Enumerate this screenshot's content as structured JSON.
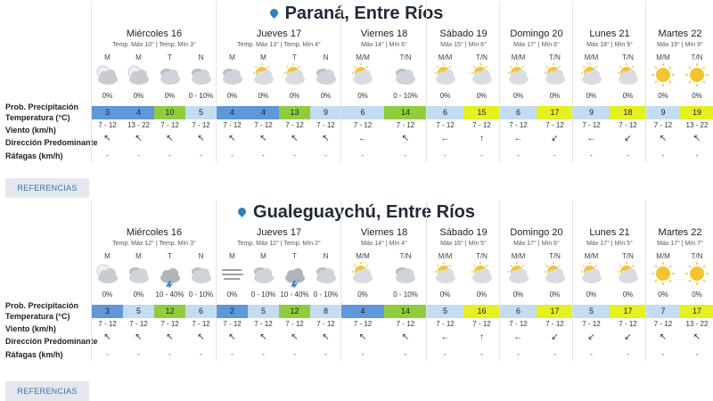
{
  "row_labels": [
    "Prob. Precipitación",
    "Temperatura (°C)",
    "Viento (km/h)",
    "Dirección Predominante",
    "Ráfagas (km/h)"
  ],
  "colors": {
    "cold": "#5f97d8",
    "cool": "#c4dcf2",
    "warm": "#8fcd3d",
    "hot": "#e4f01f"
  },
  "locations": [
    {
      "title": "Paraná, Entre Ríos",
      "button": "REFERENCIAS",
      "days": [
        {
          "name": "Miércoles 16",
          "temps": "Temp. Máx 10° | Temp. Mín 3°",
          "periods": [
            {
              "label": "M",
              "icon": "cloud-sun-icon",
              "precip": "0%",
              "temp": "3",
              "tc": "cold",
              "wind": "7 - 12",
              "dir": "↖",
              "gust": "-"
            },
            {
              "label": "M",
              "icon": "cloud-sun-icon",
              "precip": "0%",
              "temp": "4",
              "tc": "cold",
              "wind": "13 - 22",
              "dir": "↖",
              "gust": "-"
            },
            {
              "label": "T",
              "icon": "cloudy-icon",
              "precip": "0%",
              "temp": "10",
              "tc": "warm",
              "wind": "7 - 12",
              "dir": "↖",
              "gust": "-"
            },
            {
              "label": "N",
              "icon": "cloudy-icon",
              "precip": "0 - 10%",
              "temp": "5",
              "tc": "cool",
              "wind": "7 - 12",
              "dir": "↖",
              "gust": "-"
            }
          ]
        },
        {
          "name": "Jueves 17",
          "temps": "Temp. Máx 13° | Temp. Mín 4°",
          "periods": [
            {
              "label": "M",
              "icon": "cloudy-icon",
              "precip": "0%",
              "temp": "4",
              "tc": "cold",
              "wind": "7 - 12",
              "dir": "↖",
              "gust": "-"
            },
            {
              "label": "M",
              "icon": "partly-sunny-icon",
              "precip": "0%",
              "temp": "4",
              "tc": "cold",
              "wind": "7 - 12",
              "dir": "↖",
              "gust": "-"
            },
            {
              "label": "T",
              "icon": "partly-sunny-icon",
              "precip": "0%",
              "temp": "13",
              "tc": "warm",
              "wind": "7 - 12",
              "dir": "↖",
              "gust": "-"
            },
            {
              "label": "N",
              "icon": "cloudy-icon",
              "precip": "0%",
              "temp": "9",
              "tc": "cool",
              "wind": "7 - 12",
              "dir": "↖",
              "gust": "-"
            }
          ]
        },
        {
          "name": "Viernes 18",
          "temps": "Máx 14° | Mín 6°",
          "periods": [
            {
              "label": "M/M",
              "icon": "partly-sunny-icon",
              "precip": "0%",
              "temp": "6",
              "tc": "cool",
              "wind": "7 - 12",
              "dir": "←",
              "gust": "-"
            },
            {
              "label": "T/N",
              "icon": "cloudy-icon",
              "precip": "0 - 10%",
              "temp": "14",
              "tc": "warm",
              "wind": "7 - 12",
              "dir": "↖",
              "gust": "-"
            }
          ]
        },
        {
          "name": "Sábado 19",
          "temps": "Máx 15° | Mín 6°",
          "periods": [
            {
              "label": "M/M",
              "icon": "partly-sunny-icon",
              "precip": "0%",
              "temp": "6",
              "tc": "cool",
              "wind": "7 - 12",
              "dir": "←",
              "gust": "-"
            },
            {
              "label": "T/N",
              "icon": "partly-sunny-icon",
              "precip": "0%",
              "temp": "15",
              "tc": "hot",
              "wind": "7 - 12",
              "dir": "↑",
              "gust": "-"
            }
          ]
        },
        {
          "name": "Domingo 20",
          "temps": "Máx 17° | Mín 6°",
          "periods": [
            {
              "label": "M/M",
              "icon": "partly-sunny-icon",
              "precip": "0%",
              "temp": "6",
              "tc": "cool",
              "wind": "7 - 12",
              "dir": "←",
              "gust": "-"
            },
            {
              "label": "T/N",
              "icon": "partly-sunny-icon",
              "precip": "0%",
              "temp": "17",
              "tc": "hot",
              "wind": "7 - 12",
              "dir": "↙",
              "gust": "-"
            }
          ]
        },
        {
          "name": "Lunes 21",
          "temps": "Máx 18° | Mín 9°",
          "periods": [
            {
              "label": "M/M",
              "icon": "partly-sunny-icon",
              "precip": "0%",
              "temp": "9",
              "tc": "cool",
              "wind": "7 - 12",
              "dir": "←",
              "gust": "-"
            },
            {
              "label": "T/N",
              "icon": "partly-sunny-icon",
              "precip": "0%",
              "temp": "18",
              "tc": "hot",
              "wind": "7 - 12",
              "dir": "↙",
              "gust": "-"
            }
          ]
        },
        {
          "name": "Martes 22",
          "temps": "Máx 19° | Mín 9°",
          "periods": [
            {
              "label": "M/M",
              "icon": "sun-icon",
              "precip": "0%",
              "temp": "9",
              "tc": "cool",
              "wind": "7 - 12",
              "dir": "↖",
              "gust": "-"
            },
            {
              "label": "T/N",
              "icon": "sun-icon",
              "precip": "0%",
              "temp": "19",
              "tc": "hot",
              "wind": "13 - 22",
              "dir": "↖",
              "gust": "-"
            }
          ]
        }
      ]
    },
    {
      "title": "Gualeguaychú, Entre Ríos",
      "button": "REFERENCIAS",
      "days": [
        {
          "name": "Miércoles 16",
          "temps": "Temp. Máx 12° | Temp. Mín 3°",
          "periods": [
            {
              "label": "M",
              "icon": "cloud-sun-icon",
              "precip": "0%",
              "temp": "3",
              "tc": "cold",
              "wind": "7 - 12",
              "dir": "↖",
              "gust": "-"
            },
            {
              "label": "M",
              "icon": "cloudy-icon",
              "precip": "0%",
              "temp": "5",
              "tc": "cool",
              "wind": "7 - 12",
              "dir": "↖",
              "gust": "-"
            },
            {
              "label": "T",
              "icon": "storm-icon",
              "precip": "10 - 40%",
              "temp": "12",
              "tc": "warm",
              "wind": "7 - 12",
              "dir": "↖",
              "gust": "-"
            },
            {
              "label": "N",
              "icon": "cloudy-icon",
              "precip": "0 - 10%",
              "temp": "6",
              "tc": "cool",
              "wind": "7 - 12",
              "dir": "↖",
              "gust": "-"
            }
          ]
        },
        {
          "name": "Jueves 17",
          "temps": "Temp. Máx 12° | Temp. Mín 2°",
          "periods": [
            {
              "label": "M",
              "icon": "fog-icon",
              "precip": "0%",
              "temp": "2",
              "tc": "cold",
              "wind": "7 - 12",
              "dir": "↖",
              "gust": "-"
            },
            {
              "label": "M",
              "icon": "cloudy-icon",
              "precip": "0 - 10%",
              "temp": "5",
              "tc": "cool",
              "wind": "7 - 12",
              "dir": "↖",
              "gust": "-"
            },
            {
              "label": "T",
              "icon": "storm-icon",
              "precip": "10 - 40%",
              "temp": "12",
              "tc": "warm",
              "wind": "7 - 12",
              "dir": "↖",
              "gust": "-"
            },
            {
              "label": "N",
              "icon": "cloudy-icon",
              "precip": "0 - 10%",
              "temp": "8",
              "tc": "cool",
              "wind": "7 - 12",
              "dir": "↖",
              "gust": "-"
            }
          ]
        },
        {
          "name": "Viernes 18",
          "temps": "Máx 14° | Mín 4°",
          "periods": [
            {
              "label": "M/M",
              "icon": "partly-sunny-icon",
              "precip": "0%",
              "temp": "4",
              "tc": "cold",
              "wind": "7 - 12",
              "dir": "↖",
              "gust": "-"
            },
            {
              "label": "T/N",
              "icon": "cloudy-icon",
              "precip": "0 - 10%",
              "temp": "14",
              "tc": "warm",
              "wind": "7 - 12",
              "dir": "↖",
              "gust": "-"
            }
          ]
        },
        {
          "name": "Sábado 19",
          "temps": "Máx 16° | Mín 5°",
          "periods": [
            {
              "label": "M/M",
              "icon": "partly-sunny-icon",
              "precip": "0%",
              "temp": "5",
              "tc": "cool",
              "wind": "7 - 12",
              "dir": "←",
              "gust": "-"
            },
            {
              "label": "T/N",
              "icon": "partly-sunny-icon",
              "precip": "0%",
              "temp": "16",
              "tc": "hot",
              "wind": "7 - 12",
              "dir": "↑",
              "gust": "-"
            }
          ]
        },
        {
          "name": "Domingo 20",
          "temps": "Máx 17° | Mín 6°",
          "periods": [
            {
              "label": "M/M",
              "icon": "partly-sunny-icon",
              "precip": "0%",
              "temp": "6",
              "tc": "cool",
              "wind": "7 - 12",
              "dir": "←",
              "gust": "-"
            },
            {
              "label": "T/N",
              "icon": "partly-sunny-icon",
              "precip": "0%",
              "temp": "17",
              "tc": "hot",
              "wind": "7 - 12",
              "dir": "↙",
              "gust": "-"
            }
          ]
        },
        {
          "name": "Lunes 21",
          "temps": "Máx 17° | Mín 5°",
          "periods": [
            {
              "label": "M/M",
              "icon": "partly-sunny-icon",
              "precip": "0%",
              "temp": "5",
              "tc": "cool",
              "wind": "7 - 12",
              "dir": "↙",
              "gust": "-"
            },
            {
              "label": "T/N",
              "icon": "partly-sunny-icon",
              "precip": "0%",
              "temp": "17",
              "tc": "hot",
              "wind": "7 - 12",
              "dir": "↙",
              "gust": "-"
            }
          ]
        },
        {
          "name": "Martes 22",
          "temps": "Máx 17° | Mín 7°",
          "periods": [
            {
              "label": "M/M",
              "icon": "sun-icon",
              "precip": "0%",
              "temp": "7",
              "tc": "cool",
              "wind": "7 - 12",
              "dir": "↖",
              "gust": "-"
            },
            {
              "label": "T/N",
              "icon": "sun-icon",
              "precip": "0%",
              "temp": "17",
              "tc": "hot",
              "wind": "13 - 22",
              "dir": "↖",
              "gust": "-"
            }
          ]
        }
      ]
    }
  ]
}
